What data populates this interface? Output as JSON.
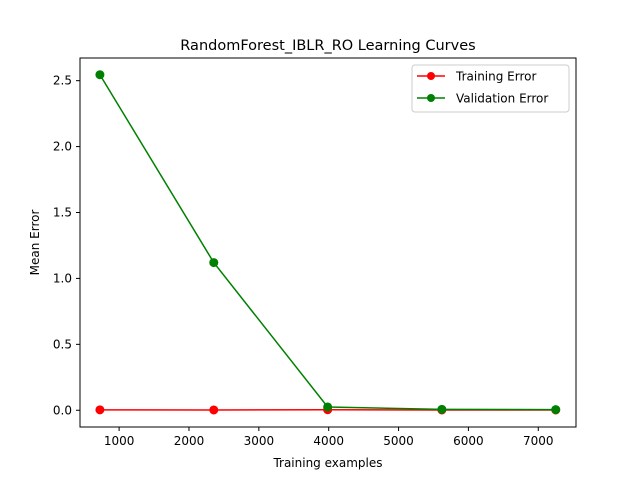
{
  "chart_data": {
    "type": "line",
    "title": "RandomForest_IBLR_RO Learning Curves",
    "xlabel": "Training examples",
    "ylabel": "Mean Error",
    "xlim": [
      440,
      7540
    ],
    "ylim": [
      -0.127,
      2.672
    ],
    "xticks": [
      1000,
      2000,
      3000,
      4000,
      5000,
      6000,
      7000
    ],
    "yticks": [
      0.0,
      0.5,
      1.0,
      1.5,
      2.0,
      2.5
    ],
    "xtick_labels": [
      "1000",
      "2000",
      "3000",
      "4000",
      "5000",
      "6000",
      "7000"
    ],
    "ytick_labels": [
      "0.0",
      "0.5",
      "1.0",
      "1.5",
      "2.0",
      "2.5"
    ],
    "grid": false,
    "legend_position": "top-right",
    "x": [
      725,
      2355,
      3985,
      5620,
      7250
    ],
    "series": [
      {
        "name": "Training Error",
        "color": "#ff0000",
        "marker": "circle",
        "values": [
          0.003,
          0.002,
          0.004,
          0.002,
          0.002
        ]
      },
      {
        "name": "Validation Error",
        "color": "#008000",
        "marker": "circle",
        "values": [
          2.545,
          1.12,
          0.025,
          0.007,
          0.005
        ]
      }
    ]
  }
}
